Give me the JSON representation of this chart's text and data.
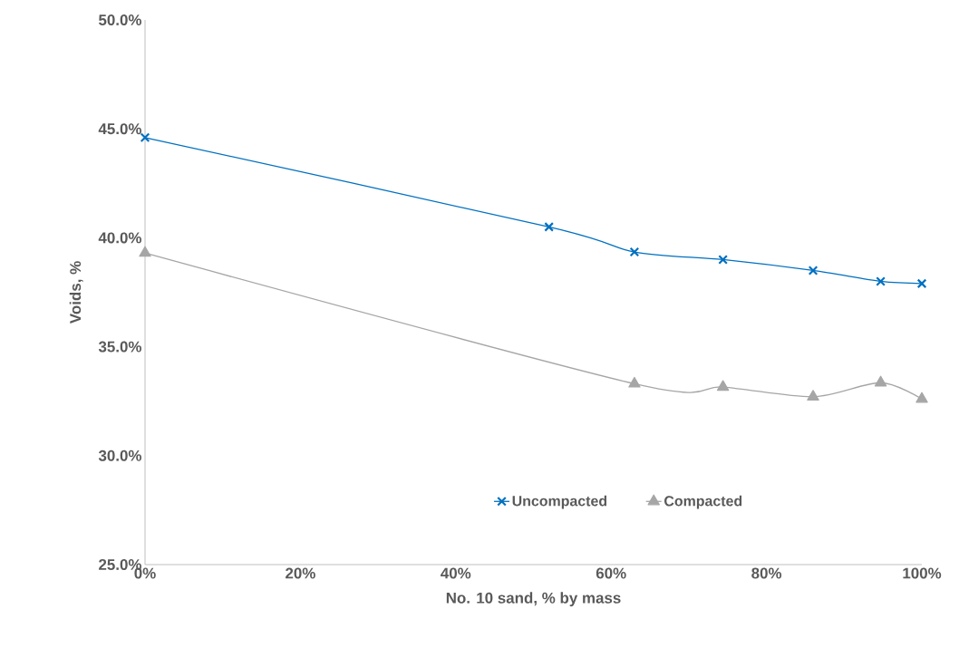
{
  "chart_data": {
    "type": "line",
    "xlabel": "No. 10 sand, % by mass",
    "ylabel": "Voids, %",
    "xlim": [
      0,
      100
    ],
    "ylim": [
      25,
      50
    ],
    "xticks": [
      {
        "value": 0,
        "label": "0%"
      },
      {
        "value": 20,
        "label": "20%"
      },
      {
        "value": 40,
        "label": "40%"
      },
      {
        "value": 60,
        "label": "60%"
      },
      {
        "value": 80,
        "label": "80%"
      },
      {
        "value": 100,
        "label": "100%"
      }
    ],
    "yticks": [
      {
        "value": 25,
        "label": "25.0%"
      },
      {
        "value": 30,
        "label": "30.0%"
      },
      {
        "value": 35,
        "label": "35.0%"
      },
      {
        "value": 40,
        "label": "40.0%"
      },
      {
        "value": 45,
        "label": "45.0%"
      },
      {
        "value": 50,
        "label": "50.0%"
      }
    ],
    "legend": "bottom",
    "grid": false,
    "series": [
      {
        "name": "Uncompacted",
        "color": "#0070c0",
        "marker": "cross",
        "x": [
          0,
          52,
          63,
          74.4,
          86,
          94.7,
          100
        ],
        "values": [
          44.6,
          40.5,
          39.35,
          39.0,
          38.5,
          38.0,
          37.9
        ]
      },
      {
        "name": "Compacted",
        "color": "#a6a6a6",
        "marker": "triangle",
        "x": [
          0,
          63,
          74.4,
          86,
          94.7,
          100
        ],
        "values": [
          39.3,
          33.3,
          33.15,
          32.7,
          33.35,
          32.6
        ]
      }
    ]
  }
}
